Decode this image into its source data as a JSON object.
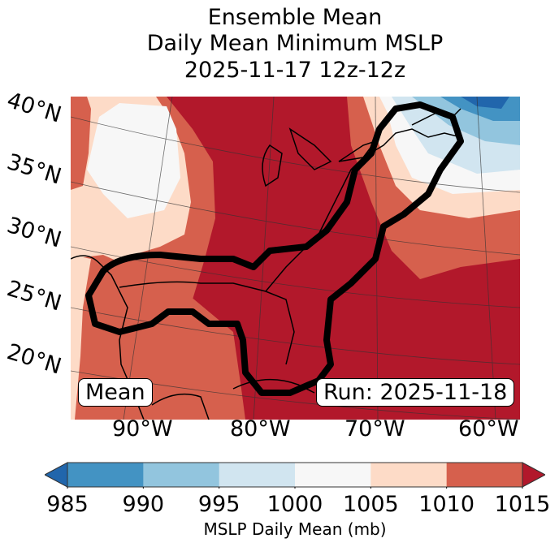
{
  "title": {
    "line1": "Ensemble Mean",
    "line2": "Daily Mean Minimum MSLP",
    "line3": "2025-11-17 12z-12z"
  },
  "map": {
    "region": "Eastern North America / Gulf of Mexico / Western Atlantic",
    "lat_labels": [
      "40°N",
      "35°N",
      "30°N",
      "25°N",
      "20°N"
    ],
    "lon_labels": [
      "90°W",
      "80°W",
      "70°W",
      "60°W"
    ],
    "contour": "thick black outline enclosing Gulf Coast, Florida, U.S. East Coast and Nova Scotia",
    "mean_label": "Mean",
    "run_label": "Run: 2025-11-18"
  },
  "colorbar": {
    "label": "MSLP Daily Mean (mb)",
    "ticks": [
      "985",
      "990",
      "995",
      "1000",
      "1005",
      "1010",
      "1015"
    ],
    "colors": [
      "#2166ac",
      "#4393c3",
      "#92c5de",
      "#d1e5f0",
      "#f7f7f7",
      "#fddbc7",
      "#d6604d",
      "#b2182b"
    ],
    "bins": [
      {
        "range": "<985",
        "color": "#2166ac"
      },
      {
        "range": "985-990",
        "color": "#4393c3"
      },
      {
        "range": "990-995",
        "color": "#92c5de"
      },
      {
        "range": "995-1000",
        "color": "#d1e5f0"
      },
      {
        "range": "1000-1005",
        "color": "#f7f7f7"
      },
      {
        "range": "1005-1010",
        "color": "#fddbc7"
      },
      {
        "range": "1010-1015",
        "color": "#d6604d"
      },
      {
        "range": ">1015",
        "color": "#b2182b"
      }
    ],
    "extend": "both"
  }
}
